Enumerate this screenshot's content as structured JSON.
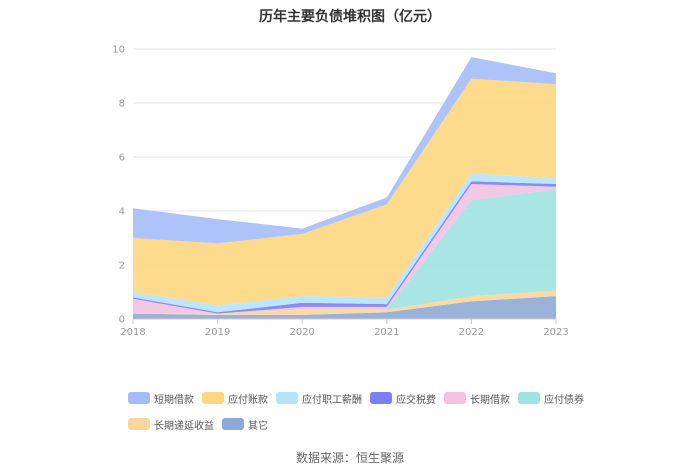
{
  "chart_data": {
    "type": "area",
    "stacked": true,
    "title": "历年主要负债堆积图（亿元）",
    "categories": [
      "2018",
      "2019",
      "2020",
      "2021",
      "2022",
      "2023"
    ],
    "ylim": [
      0,
      10
    ],
    "yticks": [
      "0",
      "2",
      "4",
      "6",
      "8",
      "10"
    ],
    "grid": true,
    "legend_position": "bottom",
    "series": [
      {
        "name": "其它",
        "color": "#8fa9d6",
        "values": [
          0.2,
          0.15,
          0.15,
          0.25,
          0.65,
          0.85
        ]
      },
      {
        "name": "长期递延收益",
        "color": "#fbd69a",
        "values": [
          0.0,
          0.05,
          0.2,
          0.1,
          0.2,
          0.2
        ]
      },
      {
        "name": "应付债券",
        "color": "#9fe2e0",
        "values": [
          0.0,
          0.0,
          0.0,
          0.0,
          3.55,
          3.75
        ]
      },
      {
        "name": "长期借款",
        "color": "#f1c2e2",
        "values": [
          0.55,
          0.0,
          0.1,
          0.1,
          0.6,
          0.1
        ]
      },
      {
        "name": "应交税费",
        "color": "#7a7ff5",
        "values": [
          0.05,
          0.05,
          0.15,
          0.1,
          0.1,
          0.1
        ]
      },
      {
        "name": "应付职工薪酬",
        "color": "#b5e3fb",
        "values": [
          0.2,
          0.25,
          0.25,
          0.25,
          0.3,
          0.2
        ]
      },
      {
        "name": "应付账款",
        "color": "#fed77f",
        "values": [
          2.0,
          2.3,
          2.3,
          3.45,
          3.5,
          3.5
        ]
      },
      {
        "name": "短期借款",
        "color": "#a4bcfa",
        "values": [
          1.1,
          0.9,
          0.2,
          0.25,
          0.8,
          0.4
        ]
      }
    ],
    "legend_order": [
      "短期借款",
      "应付账款",
      "应付职工薪酬",
      "应交税费",
      "长期借款",
      "应付债券",
      "长期递延收益",
      "其它"
    ]
  },
  "source": "数据来源：恒生聚源"
}
